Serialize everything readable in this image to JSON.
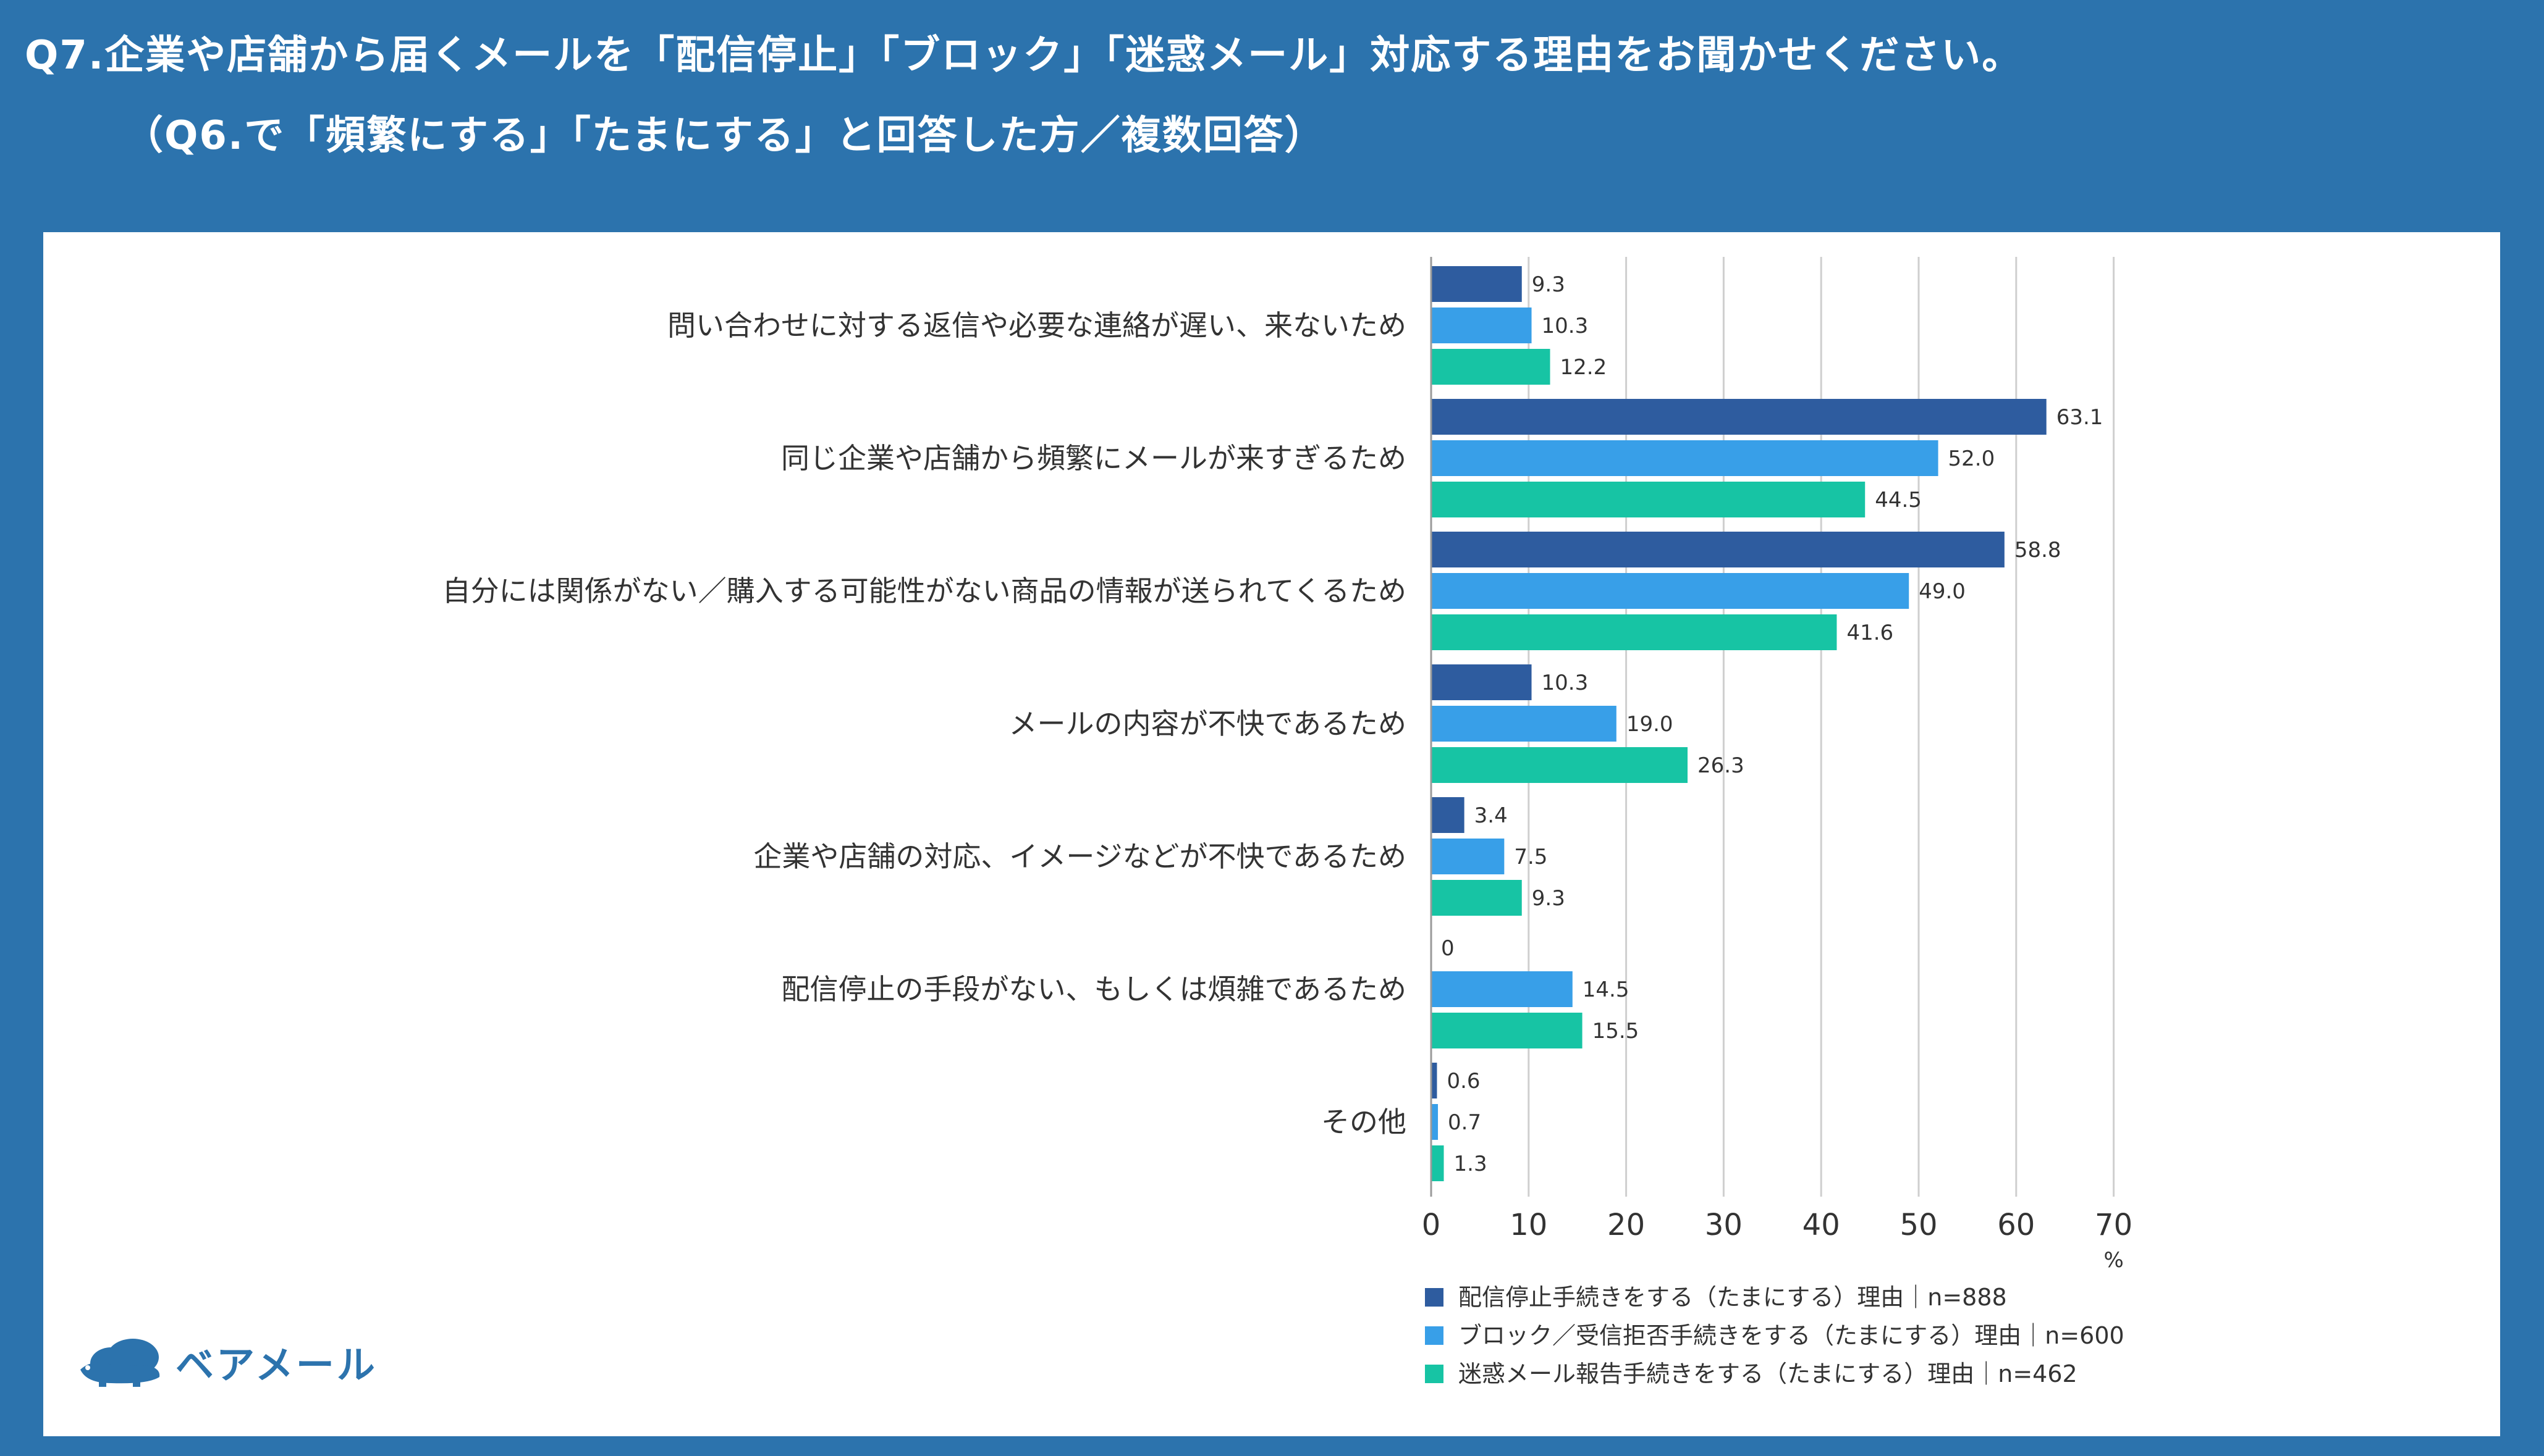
{
  "header": {
    "title_line1": "Q7.企業や店舗から届くメールを「配信停止」「ブロック」「迷惑メール」対応する理由をお聞かせください。",
    "title_line2": "（Q6.で「頻繁にする」「たまにする」と回答した方／複数回答）"
  },
  "brand": {
    "name": "ベアメール",
    "icon": "bear-cloud-icon",
    "color": "#2c73ad"
  },
  "colors": {
    "background": "#2c73ad",
    "panel": "#ffffff"
  },
  "chart_data": {
    "type": "bar",
    "orientation": "horizontal",
    "categories": [
      "問い合わせに対する返信や必要な連絡が遅い、来ないため",
      "同じ企業や店舗から頻繁にメールが来すぎるため",
      "自分には関係がない／購入する可能性がない商品の情報が送られてくるため",
      "メールの内容が不快であるため",
      "企業や店舗の対応、イメージなどが不快であるため",
      "配信停止の手段がない、もしくは煩雑であるため",
      "その他"
    ],
    "series": [
      {
        "name": "配信停止手続きをする（たまにする）理由｜n=888",
        "color": "#2e5c9f",
        "values": [
          9.3,
          63.1,
          58.8,
          10.3,
          3.4,
          0,
          0.6
        ],
        "labels": [
          "9.3",
          "63.1",
          "58.8",
          "10.3",
          "3.4",
          "0",
          "0.6"
        ]
      },
      {
        "name": "ブロック／受信拒否手続きをする（たまにする）理由｜n=600",
        "color": "#389fe8",
        "values": [
          10.3,
          52.0,
          49.0,
          19.0,
          7.5,
          14.5,
          0.7
        ],
        "labels": [
          "10.3",
          "52.0",
          "49.0",
          "19.0",
          "7.5",
          "14.5",
          "0.7"
        ]
      },
      {
        "name": "迷惑メール報告手続きをする（たまにする）理由｜n=462",
        "color": "#17c4a4",
        "values": [
          12.2,
          44.5,
          41.6,
          26.3,
          9.3,
          15.5,
          1.3
        ],
        "labels": [
          "12.2",
          "44.5",
          "41.6",
          "26.3",
          "9.3",
          "15.5",
          "1.3"
        ]
      }
    ],
    "xticks": [
      0,
      10,
      20,
      30,
      40,
      50,
      60,
      70
    ],
    "xlim": [
      0,
      70
    ],
    "unit": "%",
    "grid": true,
    "legend_position": "bottom"
  }
}
